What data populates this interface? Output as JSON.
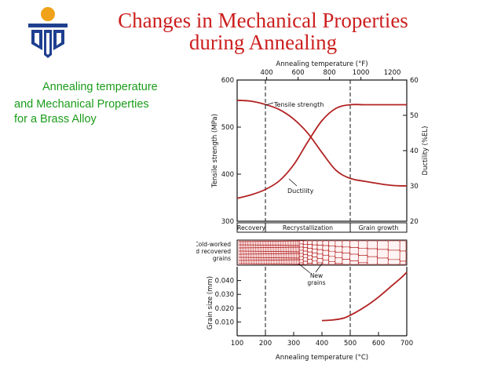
{
  "slide": {
    "title_line1": "Changes in Mechanical Properties",
    "title_line2": "during Annealing",
    "subtitle_line1": "Annealing temperature",
    "subtitle_line2": "and Mechanical Properties",
    "subtitle_line3": "for a Brass Alloy"
  },
  "colors": {
    "title": "#cc1f1f",
    "subtitle": "#1a9c1a",
    "curve": "#b22222",
    "logo": "#1f3f8f",
    "logo_sun": "#f0a21a"
  },
  "chart_data": [
    {
      "type": "line",
      "x_axis_label": "Annealing temperature (°F)",
      "x_ticks": [
        "400",
        "600",
        "800",
        "1000",
        "1200"
      ],
      "ylabel_left": "Tensile strength (MPa)",
      "ylabel_right": "Ductility (%EL)",
      "y_ticks_left": [
        "300",
        "400",
        "500",
        "600"
      ],
      "y_ticks_right": [
        "20",
        "30",
        "40",
        "50",
        "60"
      ],
      "ylim_left": [
        300,
        600
      ],
      "ylim_right": [
        20,
        60
      ],
      "xlim_c": [
        100,
        700
      ],
      "regions": [
        {
          "label": "Recovery",
          "x": [
            100,
            200
          ]
        },
        {
          "label": "Recrystallization",
          "x": [
            200,
            500
          ]
        },
        {
          "label": "Grain growth",
          "x": [
            500,
            700
          ]
        }
      ],
      "series": [
        {
          "name": "Tensile strength",
          "axis": "left",
          "x": [
            100,
            150,
            200,
            250,
            300,
            350,
            400,
            450,
            500,
            550,
            600,
            650,
            700
          ],
          "values": [
            557,
            555,
            548,
            537,
            517,
            487,
            446,
            408,
            391,
            385,
            380,
            376,
            375
          ]
        },
        {
          "name": "Ductility",
          "axis": "right",
          "x": [
            100,
            150,
            200,
            250,
            300,
            350,
            400,
            450,
            500,
            550,
            600,
            650,
            700
          ],
          "values": [
            26.5,
            27.5,
            29,
            31.5,
            36,
            42.5,
            48.5,
            52,
            53,
            53,
            53,
            53,
            53
          ]
        }
      ]
    },
    {
      "type": "line",
      "xlabel": "Annealing temperature (°C)",
      "x_ticks": [
        "100",
        "200",
        "300",
        "400",
        "500",
        "600",
        "700"
      ],
      "ylabel": "Grain size (mm)",
      "y_ticks": [
        "0.010",
        "0.020",
        "0.030",
        "0.040"
      ],
      "xlim": [
        100,
        700
      ],
      "ylim": [
        0,
        0.05
      ],
      "series": [
        {
          "name": "Grain size",
          "x": [
            400,
            440,
            480,
            520,
            560,
            600,
            640,
            680,
            700
          ],
          "values": [
            0.011,
            0.0115,
            0.013,
            0.017,
            0.022,
            0.028,
            0.035,
            0.042,
            0.046
          ]
        }
      ]
    }
  ],
  "microstructure": {
    "label_cold_worked_1": "Cold-worked",
    "label_cold_worked_2": "and recovered",
    "label_cold_worked_3": "grains",
    "label_new_1": "New",
    "label_new_2": "grains"
  }
}
